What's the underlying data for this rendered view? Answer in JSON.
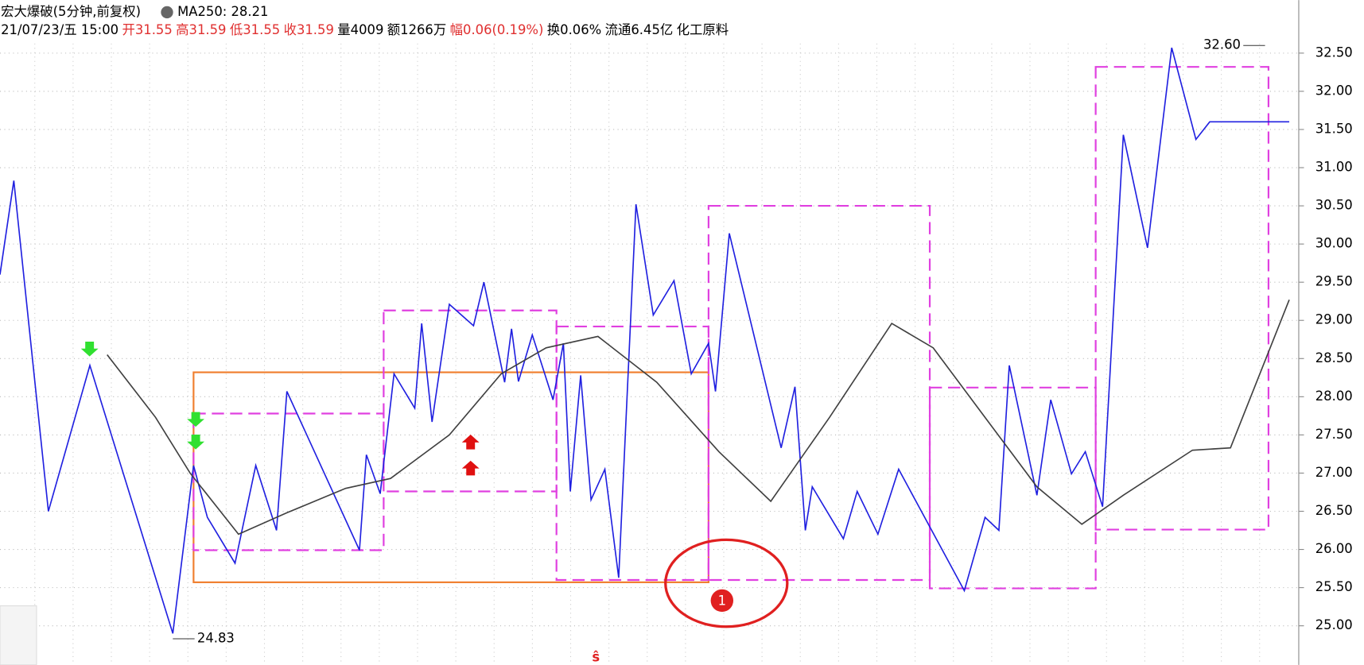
{
  "chart_data": {
    "type": "line",
    "title": "宏大爆破(5分钟,前复权)",
    "indicator": "MA250: 28.21",
    "info": [
      {
        "text": "21/07/23/五 15:00",
        "color": "#000000"
      },
      {
        "text": "开31.55",
        "color": "#e03030"
      },
      {
        "text": "高31.59",
        "color": "#e03030"
      },
      {
        "text": "低31.55",
        "color": "#e03030"
      },
      {
        "text": "收31.59",
        "color": "#e03030"
      },
      {
        "text": "量4009",
        "color": "#000000"
      },
      {
        "text": "额1266万",
        "color": "#000000"
      },
      {
        "text": "幅",
        "color": "#e03030"
      },
      {
        "text": "0.06(0.19%)",
        "color": "#e03030"
      },
      {
        "text": "换0.06%",
        "color": "#000000"
      },
      {
        "text": "流通6.45亿",
        "color": "#000000"
      },
      {
        "text": "化工原料",
        "color": "#000000"
      }
    ],
    "xlim": [
      0,
      375
    ],
    "ylim": [
      24.75,
      32.7
    ],
    "yticks": [
      {
        "value": 25,
        "label": "25.00"
      },
      {
        "value": 25.5,
        "label": "25.50"
      },
      {
        "value": 26,
        "label": "26.00"
      },
      {
        "value": 26.5,
        "label": "26.50"
      },
      {
        "value": 27,
        "label": "27.00"
      },
      {
        "value": 27.5,
        "label": "27.50"
      },
      {
        "value": 28,
        "label": "28.00"
      },
      {
        "value": 28.5,
        "label": "28.50"
      },
      {
        "value": 29,
        "label": "29.00"
      },
      {
        "value": 29.5,
        "label": "29.50"
      },
      {
        "value": 30,
        "label": "30.00"
      },
      {
        "value": 30.5,
        "label": "30.50"
      },
      {
        "value": 31,
        "label": "31.00"
      },
      {
        "value": 31.5,
        "label": "31.50"
      },
      {
        "value": 32,
        "label": "32.00"
      },
      {
        "value": 32.5,
        "label": "32.50"
      }
    ],
    "grid": true,
    "series": [
      {
        "color": "#2020e0",
        "x": [
          0,
          4,
          14,
          26,
          50,
          56,
          60,
          68,
          74,
          80,
          83,
          104,
          106,
          110,
          114,
          120,
          122,
          125,
          130,
          137,
          140,
          146,
          148,
          150,
          154,
          160,
          163,
          165,
          168,
          171,
          175,
          179,
          184,
          189,
          195,
          200,
          205,
          207,
          211,
          226,
          230,
          233,
          235,
          244,
          248,
          254,
          260,
          279,
          285,
          289,
          292,
          300,
          304,
          310,
          314,
          319,
          325,
          332,
          339,
          346,
          350,
          360,
          362,
          366,
          370,
          373
        ],
        "values": [
          29.6,
          30.83,
          26.5,
          28.41,
          24.9,
          27.1,
          26.42,
          25.82,
          27.1,
          26.25,
          28.07,
          25.99,
          27.24,
          26.73,
          28.3,
          27.85,
          28.96,
          27.67,
          29.21,
          28.93,
          29.5,
          28.19,
          28.89,
          28.2,
          28.81,
          27.96,
          28.7,
          26.76,
          28.28,
          26.65,
          27.05,
          25.63,
          30.52,
          29.07,
          29.52,
          28.3,
          28.7,
          28.07,
          30.14,
          27.33,
          28.13,
          26.25,
          26.82,
          26.14,
          26.76,
          26.2,
          27.05,
          25.46,
          26.42,
          26.25,
          28.41,
          26.71,
          27.96,
          26.99,
          27.28,
          26.56,
          31.43,
          29.95,
          32.57,
          31.37,
          31.6,
          31.6,
          31.6,
          31.6,
          31.6,
          31.6
        ]
      },
      {
        "color": "#404040",
        "x": [
          31,
          45,
          55,
          69,
          83,
          100,
          113,
          130,
          145,
          158,
          173,
          190,
          208,
          223,
          240,
          258,
          270,
          283,
          300,
          313,
          325,
          345,
          356,
          373
        ],
        "values": [
          28.55,
          27.73,
          27.0,
          26.2,
          26.48,
          26.8,
          26.93,
          27.5,
          28.3,
          28.64,
          28.79,
          28.19,
          27.28,
          26.63,
          27.73,
          28.96,
          28.64,
          27.85,
          26.82,
          26.33,
          26.71,
          27.3,
          27.33,
          29.27
        ]
      }
    ],
    "boxes": [
      {
        "span": [
          56,
          205
        ],
        "range": [
          25.57,
          28.32
        ],
        "color": "#f08030",
        "style": "solid"
      },
      {
        "span": [
          56,
          111
        ],
        "range": [
          25.99,
          27.78
        ],
        "color": "#e040e0",
        "style": "dashed"
      },
      {
        "span": [
          111,
          161
        ],
        "range": [
          26.76,
          29.13
        ],
        "color": "#e040e0",
        "style": "dashed"
      },
      {
        "span": [
          161,
          205
        ],
        "range": [
          25.6,
          28.92
        ],
        "color": "#e040e0",
        "style": "dashed"
      },
      {
        "span": [
          205,
          269
        ],
        "range": [
          25.6,
          30.5
        ],
        "color": "#e040e0",
        "style": "dashed"
      },
      {
        "span": [
          269,
          317
        ],
        "range": [
          25.49,
          28.12
        ],
        "color": "#e040e0",
        "style": "dashed"
      },
      {
        "span": [
          317,
          367
        ],
        "range": [
          26.26,
          32.32
        ],
        "color": "#e040e0",
        "style": "dashed"
      }
    ],
    "high": {
      "x": 366,
      "value": 32.6,
      "label": "32.60"
    },
    "low": {
      "x": 50,
      "value": 24.83,
      "label": "24.83"
    },
    "marker": "1",
    "signal": "ŝ"
  }
}
